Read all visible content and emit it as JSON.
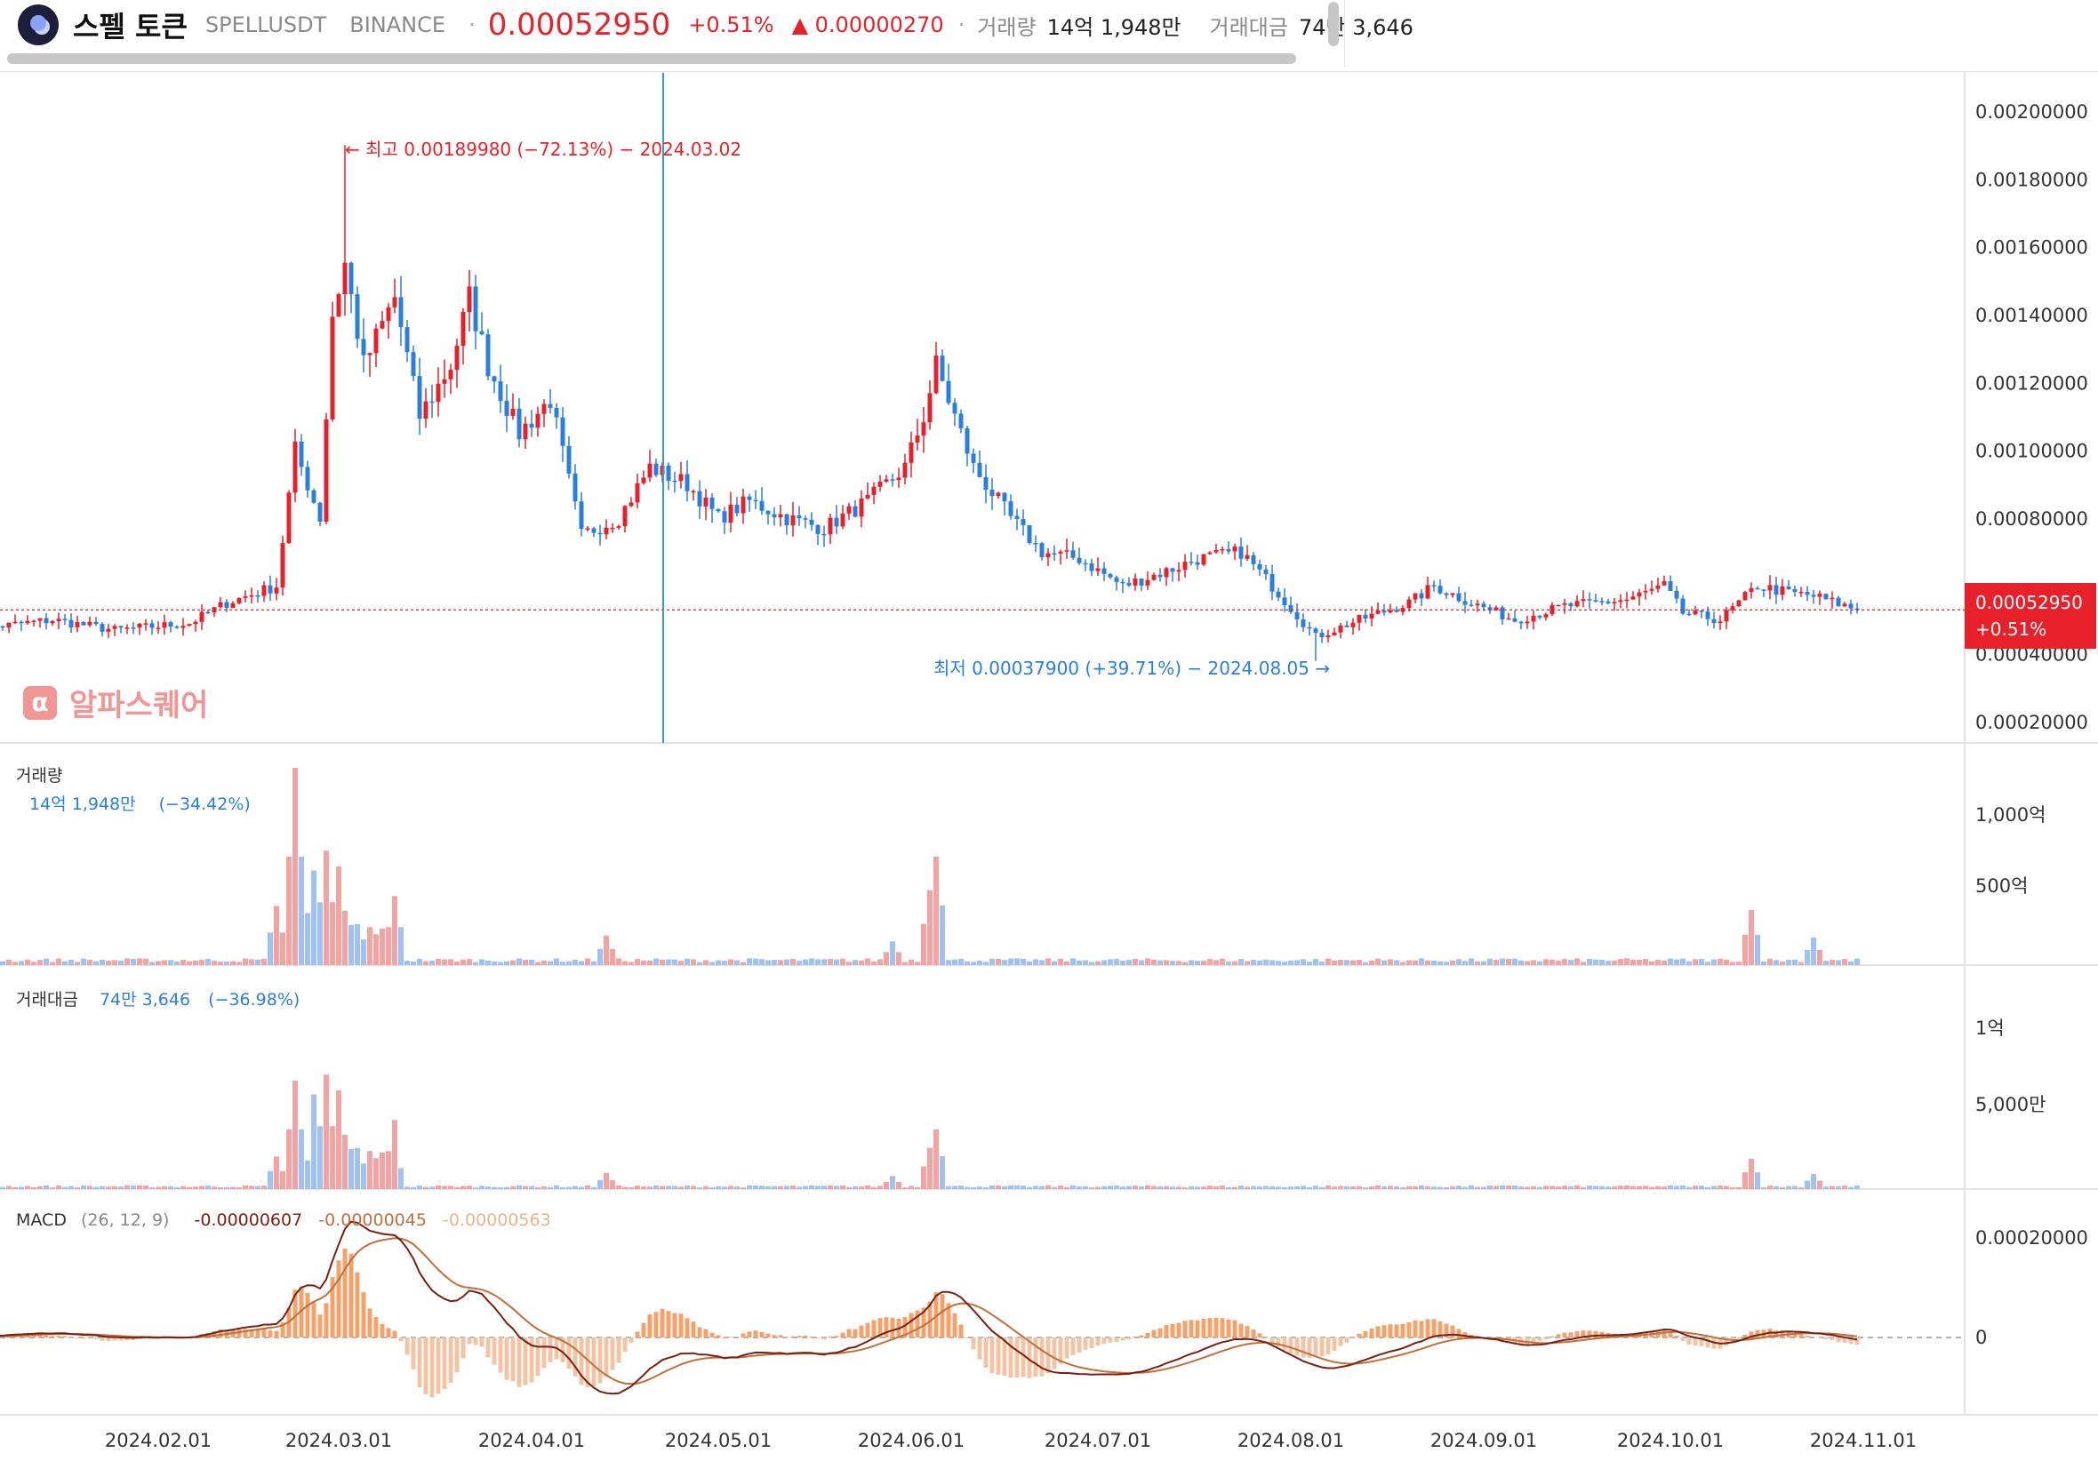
{
  "header": {
    "coin_name": "스펠 토큰",
    "symbol": "SPELLUSDT",
    "exchange": "BINANCE",
    "price": "0.00052950",
    "change_pct": "+0.51%",
    "change_abs": "▲ 0.00000270",
    "volume_label": "거래량",
    "volume_value": "14억 1,948만",
    "amount_label": "거래대금",
    "amount_value": "74만 3,646"
  },
  "annotations": {
    "high": "← 최고 0.00189980 (−72.13%) − 2024.03.02",
    "low": "최저 0.00037900 (+39.71%) − 2024.08.05 →"
  },
  "price_tag": {
    "price": "0.00052950",
    "change": "+0.51%"
  },
  "watermark": "알파스퀘어",
  "volume_panel": {
    "label": "거래량",
    "value": "14억 1,948만",
    "change": "(−34.42%)",
    "ticks": [
      "1,000억",
      "500억"
    ]
  },
  "amount_panel": {
    "label": "거래대금",
    "value": "74만 3,646",
    "change": "(−36.98%)",
    "ticks": [
      "1억",
      "5,000만"
    ]
  },
  "macd_panel": {
    "label": "MACD",
    "params": "(26, 12, 9)",
    "macd": "-0.00000607",
    "signal": "-0.00000045",
    "hist": "-0.00000563",
    "ticks": [
      "0.00020000",
      "0"
    ]
  },
  "colors": {
    "up": "#e8202a",
    "down": "#2a7fde",
    "vol_up": "#f4a3a3",
    "vol_down": "#9fc2f2",
    "macd": "#7a1f12",
    "signal": "#c0703a",
    "hist_up": "#f5a26a",
    "hist_down": "#f0c4a4"
  },
  "chart_data": {
    "type": "candlestick",
    "y_ticks": [
      "0.00200000",
      "0.00180000",
      "0.00160000",
      "0.00140000",
      "0.00120000",
      "0.00100000",
      "0.00080000",
      "0.00040000",
      "0.00020000"
    ],
    "x_ticks": [
      "2024.02.01",
      "2024.03.01",
      "2024.04.01",
      "2024.05.01",
      "2024.06.01",
      "2024.07.01",
      "2024.08.01",
      "2024.09.01",
      "2024.10.01",
      "2024.11.01"
    ],
    "last_price": 0.0005295,
    "high": 0.0018998,
    "low": 0.000379,
    "close_anchors": [
      [
        "2024-01-06",
        0.00048
      ],
      [
        "2024-01-15",
        0.0005
      ],
      [
        "2024-01-25",
        0.00047
      ],
      [
        "2024-02-06",
        0.00049
      ],
      [
        "2024-02-12",
        0.00055
      ],
      [
        "2024-02-20",
        0.0006
      ],
      [
        "2024-02-23",
        0.001
      ],
      [
        "2024-02-27",
        0.0008
      ],
      [
        "2024-02-29",
        0.0014
      ],
      [
        "2024-03-02",
        0.00155
      ],
      [
        "2024-03-05",
        0.00125
      ],
      [
        "2024-03-10",
        0.00145
      ],
      [
        "2024-03-14",
        0.0011
      ],
      [
        "2024-03-19",
        0.00125
      ],
      [
        "2024-03-22",
        0.00145
      ],
      [
        "2024-03-25",
        0.00125
      ],
      [
        "2024-03-30",
        0.00105
      ],
      [
        "2024-04-04",
        0.00115
      ],
      [
        "2024-04-09",
        0.00075
      ],
      [
        "2024-04-15",
        0.0008
      ],
      [
        "2024-04-20",
        0.00095
      ],
      [
        "2024-04-26",
        0.0009
      ],
      [
        "2024-05-01",
        0.0008
      ],
      [
        "2024-05-06",
        0.00085
      ],
      [
        "2024-05-12",
        0.0008
      ],
      [
        "2024-05-18",
        0.00077
      ],
      [
        "2024-05-25",
        0.00085
      ],
      [
        "2024-05-31",
        0.00095
      ],
      [
        "2024-06-03",
        0.0011
      ],
      [
        "2024-06-05",
        0.00125
      ],
      [
        "2024-06-08",
        0.0011
      ],
      [
        "2024-06-11",
        0.00095
      ],
      [
        "2024-06-17",
        0.0008
      ],
      [
        "2024-06-22",
        0.0007
      ],
      [
        "2024-06-28",
        0.00068
      ],
      [
        "2024-07-05",
        0.0006
      ],
      [
        "2024-07-13",
        0.00065
      ],
      [
        "2024-07-17",
        0.00068
      ],
      [
        "2024-07-24",
        0.0007
      ],
      [
        "2024-07-29",
        0.0006
      ],
      [
        "2024-08-05",
        0.00045
      ],
      [
        "2024-08-12",
        0.0005
      ],
      [
        "2024-08-20",
        0.00055
      ],
      [
        "2024-08-24",
        0.0006
      ],
      [
        "2024-08-30",
        0.00055
      ],
      [
        "2024-09-06",
        0.0005
      ],
      [
        "2024-09-14",
        0.00054
      ],
      [
        "2024-09-24",
        0.00056
      ],
      [
        "2024-09-30",
        0.0006
      ],
      [
        "2024-10-03",
        0.00052
      ],
      [
        "2024-10-09",
        0.0005
      ],
      [
        "2024-10-15",
        0.0006
      ],
      [
        "2024-10-20",
        0.00058
      ],
      [
        "2024-10-24",
        0.00057
      ],
      [
        "2024-10-31",
        0.00053
      ]
    ],
    "volume_spikes": [
      [
        "2024-02-20",
        0.3
      ],
      [
        "2024-02-23",
        1.0
      ],
      [
        "2024-02-26",
        0.48
      ],
      [
        "2024-02-28",
        0.58
      ],
      [
        "2024-03-01",
        0.5
      ],
      [
        "2024-03-10",
        0.35
      ],
      [
        "2024-04-13",
        0.15
      ],
      [
        "2024-05-29",
        0.12
      ],
      [
        "2024-06-04",
        0.38
      ],
      [
        "2024-06-05",
        0.55
      ],
      [
        "2024-10-14",
        0.28
      ],
      [
        "2024-10-24",
        0.14
      ]
    ]
  }
}
